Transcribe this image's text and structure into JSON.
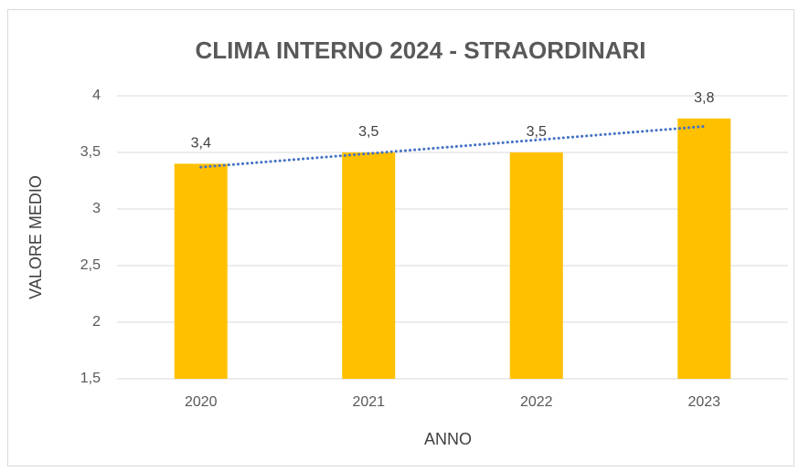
{
  "chart_data": {
    "type": "bar",
    "title": "CLIMA INTERNO 2024 - STRAORDINARI",
    "x_label": "ANNO",
    "y_label": "VALORE MEDIO",
    "categories": [
      "2020",
      "2021",
      "2022",
      "2023"
    ],
    "values": [
      3.4,
      3.5,
      3.5,
      3.8
    ],
    "value_labels": [
      "3,4",
      "3,5",
      "3,5",
      "3,8"
    ],
    "color": "#ffc000",
    "trendline": {
      "type": "linear",
      "color": "#4472c4"
    },
    "ylim": [
      1.5,
      4
    ],
    "yticks": [
      {
        "value": 1.5,
        "label": "1,5"
      },
      2,
      {
        "value": 2.5,
        "label": "2,5"
      },
      3,
      {
        "value": 3.5,
        "label": "3,5"
      },
      4
    ],
    "grid": true
  }
}
